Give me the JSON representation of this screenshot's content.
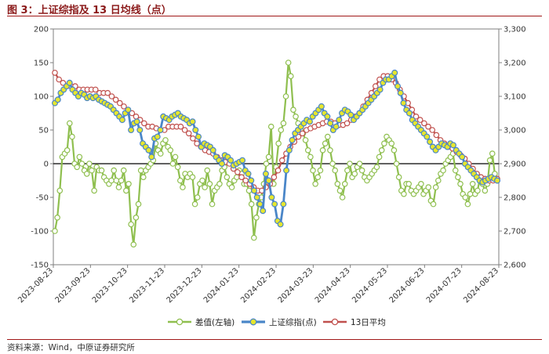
{
  "title": "图 3：上证综指及 13 日均线（点）",
  "source": "资料来源：Wind，中原证券研究所",
  "colors": {
    "spread": "#8fbf4f",
    "spread_marker_fill": "#ffffff",
    "index": "#4a86c8",
    "index_marker_fill": "#e6e62e",
    "ma13": "#c0504d",
    "ma13_marker_fill": "#ffffff",
    "title": "#8b1a1a",
    "rule": "#a01818"
  },
  "chart_data": {
    "type": "line",
    "x_ticks": [
      "2023-08-23",
      "2023-09-23",
      "2023-10-23",
      "2023-11-23",
      "2023-12-23",
      "2024-01-23",
      "2024-02-23",
      "2024-03-23",
      "2024-04-23",
      "2024-05-23",
      "2024-06-23",
      "2024-07-23",
      "2024-08-23"
    ],
    "left_axis": {
      "min": -150,
      "max": 200,
      "ticks": [
        "-150",
        "-100",
        "-50",
        "0",
        "50",
        "100",
        "150",
        "200"
      ]
    },
    "right_axis": {
      "min": 2600,
      "max": 3300,
      "ticks": [
        "2,600",
        "2,700",
        "2,800",
        "2,900",
        "3,000",
        "3,100",
        "3,200",
        "3,300"
      ]
    },
    "grid": false,
    "legend_position": "bottom",
    "series": [
      {
        "name": "差值(左轴)",
        "axis": "left",
        "values": [
          -100,
          -80,
          -40,
          10,
          15,
          20,
          60,
          40,
          0,
          -5,
          10,
          0,
          -10,
          -15,
          0,
          -10,
          -40,
          -5,
          -10,
          -10,
          -20,
          -25,
          -30,
          -25,
          -10,
          -25,
          -35,
          -25,
          -10,
          -40,
          -30,
          -90,
          -120,
          -80,
          -60,
          -10,
          -20,
          -10,
          -5,
          0,
          5,
          30,
          20,
          15,
          30,
          35,
          25,
          20,
          0,
          10,
          -5,
          -25,
          -35,
          -15,
          -20,
          -15,
          -20,
          -60,
          -50,
          -30,
          -25,
          -35,
          -10,
          -30,
          -60,
          -40,
          -35,
          -30,
          -10,
          -5,
          -20,
          -30,
          -35,
          -25,
          -20,
          -10,
          -15,
          -30,
          -30,
          -40,
          -60,
          -110,
          -80,
          -60,
          -50,
          -30,
          0,
          10,
          55,
          -30,
          -5,
          30,
          50,
          60,
          100,
          150,
          130,
          80,
          70,
          60,
          50,
          45,
          35,
          20,
          10,
          -10,
          -30,
          -20,
          -10,
          20,
          30,
          40,
          20,
          0,
          -10,
          -30,
          -40,
          -50,
          -30,
          -10,
          0,
          -20,
          -15,
          -5,
          0,
          -10,
          -20,
          -25,
          -20,
          -15,
          -10,
          -5,
          10,
          20,
          30,
          40,
          35,
          30,
          20,
          0,
          -20,
          -40,
          -45,
          -30,
          -30,
          -40,
          -45,
          -40,
          -35,
          -30,
          -45,
          -40,
          -35,
          -55,
          -60,
          -35,
          -25,
          -15,
          -10,
          0,
          5,
          10,
          15,
          -10,
          -20,
          -30,
          -45,
          -50,
          -60,
          -45,
          -30,
          -45,
          -40,
          -20,
          -30,
          -40,
          -30,
          5,
          15,
          -15,
          -25
        ],
        "marker": "open-circle"
      },
      {
        "name": "上证综指(点)",
        "axis": "right",
        "values": [
          3080,
          3090,
          3110,
          3120,
          3130,
          3140,
          3120,
          3110,
          3100,
          3110,
          3105,
          3095,
          3100,
          3095,
          3100,
          3090,
          3085,
          3080,
          3075,
          3070,
          3060,
          3050,
          3040,
          3030,
          3050,
          3060,
          3000,
          3020,
          3025,
          3000,
          2960,
          2950,
          2940,
          2920,
          2975,
          2980,
          3000,
          3040,
          3035,
          3030,
          3040,
          3045,
          3050,
          3040,
          3035,
          3030,
          3020,
          3025,
          3000,
          2980,
          2950,
          2960,
          2955,
          2950,
          2940,
          2920,
          2910,
          2900,
          2925,
          2920,
          2910,
          2895,
          2900,
          2905,
          2910,
          2880,
          2870,
          2850,
          2820,
          2800,
          2780,
          2760,
          2870,
          2850,
          2800,
          2780,
          2730,
          2720,
          2780,
          2880,
          2940,
          2970,
          2990,
          3000,
          3010,
          3020,
          3030,
          3025,
          3040,
          3050,
          3060,
          3070,
          3050,
          3040,
          3020,
          3000,
          3010,
          3030,
          3050,
          3060,
          3055,
          3045,
          3030,
          3040,
          3050,
          3060,
          3070,
          3080,
          3090,
          3100,
          3110,
          3120,
          3140,
          3150,
          3150,
          3160,
          3170,
          3130,
          3110,
          3080,
          3060,
          3050,
          3030,
          3020,
          3010,
          3000,
          2990,
          2980,
          2965,
          2950,
          2940,
          2950,
          2960,
          2955,
          2950,
          2960,
          2955,
          2940,
          2930,
          2920,
          2900,
          2890,
          2880,
          2870,
          2860,
          2850,
          2845,
          2850,
          2855,
          2860,
          2855,
          2850
        ]
      },
      {
        "name": "13日平均",
        "axis": "right",
        "values": [
          3170,
          3150,
          3140,
          3130,
          3130,
          3130,
          3120,
          3120,
          3120,
          3120,
          3120,
          3110,
          3110,
          3110,
          3100,
          3090,
          3080,
          3070,
          3060,
          3050,
          3040,
          3030,
          3020,
          3010,
          3010,
          3005,
          3000,
          3000,
          3010,
          3010,
          3010,
          3010,
          3000,
          2990,
          2975,
          2960,
          2950,
          2940,
          2935,
          2930,
          2920,
          2910,
          2905,
          2900,
          2885,
          2875,
          2860,
          2850,
          2840,
          2830,
          2820,
          2820,
          2830,
          2840,
          2860,
          2880,
          2910,
          2930,
          2950,
          2965,
          2980,
          2990,
          3000,
          3005,
          3010,
          3015,
          3020,
          3025,
          3025,
          3020,
          3015,
          3015,
          3020,
          3030,
          3040,
          3050,
          3070,
          3090,
          3110,
          3130,
          3150,
          3160,
          3160,
          3150,
          3140,
          3120,
          3100,
          3080,
          3060,
          3040,
          3030,
          3020,
          3010,
          3000,
          2985,
          2970,
          2960,
          2950,
          2945,
          2935,
          2925,
          2915,
          2900,
          2885,
          2870,
          2860,
          2855,
          2850,
          2850,
          2855
        ]
      }
    ]
  }
}
